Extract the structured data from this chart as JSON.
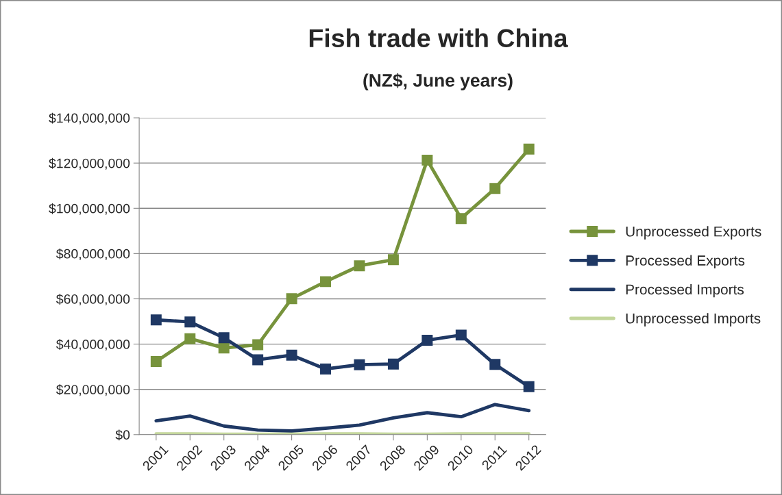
{
  "chart_data": {
    "type": "line",
    "title": "Fish trade with China",
    "subtitle": "(NZ$, June years)",
    "categories": [
      "2001",
      "2002",
      "2003",
      "2004",
      "2005",
      "2006",
      "2007",
      "2008",
      "2009",
      "2010",
      "2011",
      "2012"
    ],
    "series": [
      {
        "name": "Unprocessed Exports",
        "color": "#77933c",
        "marker": "square",
        "values": [
          32300000,
          42400000,
          38300000,
          39700000,
          60100000,
          67600000,
          74600000,
          77300000,
          121300000,
          95500000,
          108800000,
          126200000
        ]
      },
      {
        "name": "Processed Exports",
        "color": "#1f3864",
        "marker": "square",
        "values": [
          50700000,
          49800000,
          42800000,
          33100000,
          35100000,
          29000000,
          30900000,
          31200000,
          41700000,
          44000000,
          31000000,
          21200000
        ]
      },
      {
        "name": "Processed Imports",
        "color": "#1f3864",
        "marker": "none",
        "values": [
          6100000,
          8200000,
          3800000,
          2000000,
          1600000,
          2800000,
          4200000,
          7400000,
          9700000,
          7900000,
          13300000,
          10600000
        ]
      },
      {
        "name": "Unprocessed Imports",
        "color": "#c3d69b",
        "marker": "none",
        "values": [
          300000,
          300000,
          200000,
          200000,
          200000,
          300000,
          300000,
          200000,
          200000,
          300000,
          300000,
          300000
        ]
      }
    ],
    "ylim": [
      0,
      140000000
    ],
    "yticks": [
      {
        "value": 0,
        "label": "$0"
      },
      {
        "value": 20000000,
        "label": "$20,000,000"
      },
      {
        "value": 40000000,
        "label": "$40,000,000"
      },
      {
        "value": 60000000,
        "label": "$60,000,000"
      },
      {
        "value": 80000000,
        "label": "$80,000,000"
      },
      {
        "value": 100000000,
        "label": "$100,000,000"
      },
      {
        "value": 120000000,
        "label": "$120,000,000"
      },
      {
        "value": 140000000,
        "label": "$140,000,000"
      }
    ],
    "grid": "y",
    "legend": "right"
  }
}
